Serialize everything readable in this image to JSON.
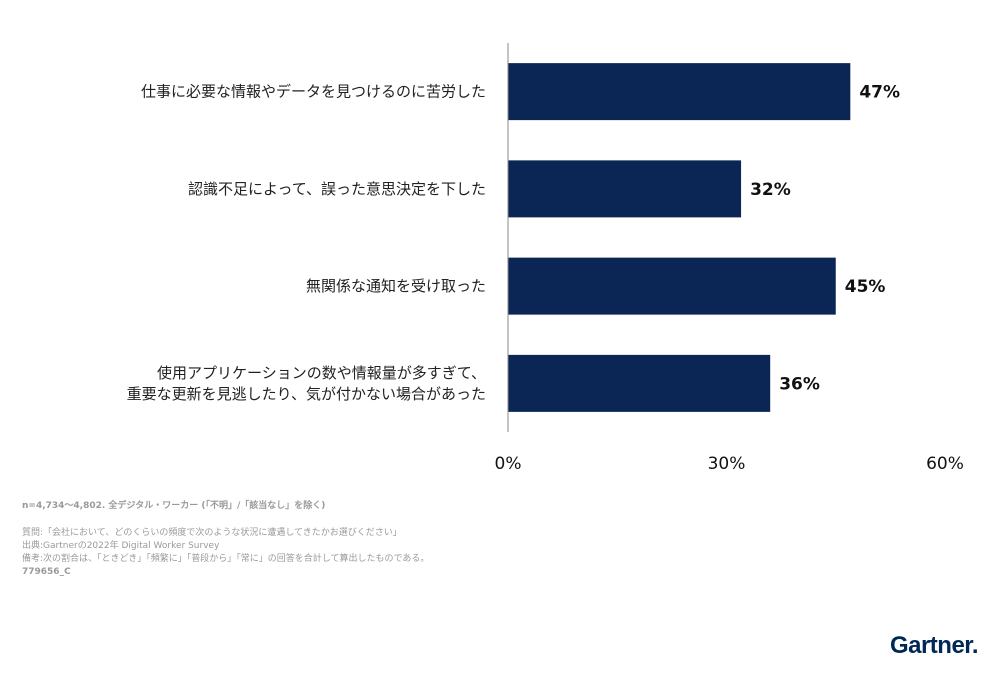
{
  "chart_data": {
    "type": "bar",
    "orientation": "horizontal",
    "categories": [
      "仕事に必要な情報やデータを見つけるのに苦労した",
      "認識不足によって、誤った意思決定を下した",
      "無関係な通知を受け取った",
      "使用アプリケーションの数や情報量が多すぎて、\n重要な更新を見逃したり、気が付かない場合があった"
    ],
    "values": [
      47,
      32,
      45,
      36
    ],
    "value_labels": [
      "47%",
      "32%",
      "45%",
      "36%"
    ],
    "xlim": [
      0,
      60
    ],
    "x_ticks": [
      0,
      30,
      60
    ],
    "x_tick_labels": [
      "0%",
      "30%",
      "60%"
    ],
    "bar_color": "#0b2654",
    "grid": false,
    "legend": "none"
  },
  "notes": {
    "sample": "n=4,734〜4,802. 全デジタル・ワーカー (「不明」/「該当なし」を除く)",
    "question": "質問:「会社において、どのくらいの頻度で次のような状況に遭遇してきたかお選びください」",
    "source": "出典:Gartnerの2022年 Digital Worker Survey",
    "remark": "備考:次の割合は、「ときどき」「頻繁に」「普段から」「常に」の回答を合計して算出したものである。",
    "code": "779656_C"
  },
  "logo": {
    "text": "Gartner",
    "dot": ".",
    "color": "#002856"
  }
}
